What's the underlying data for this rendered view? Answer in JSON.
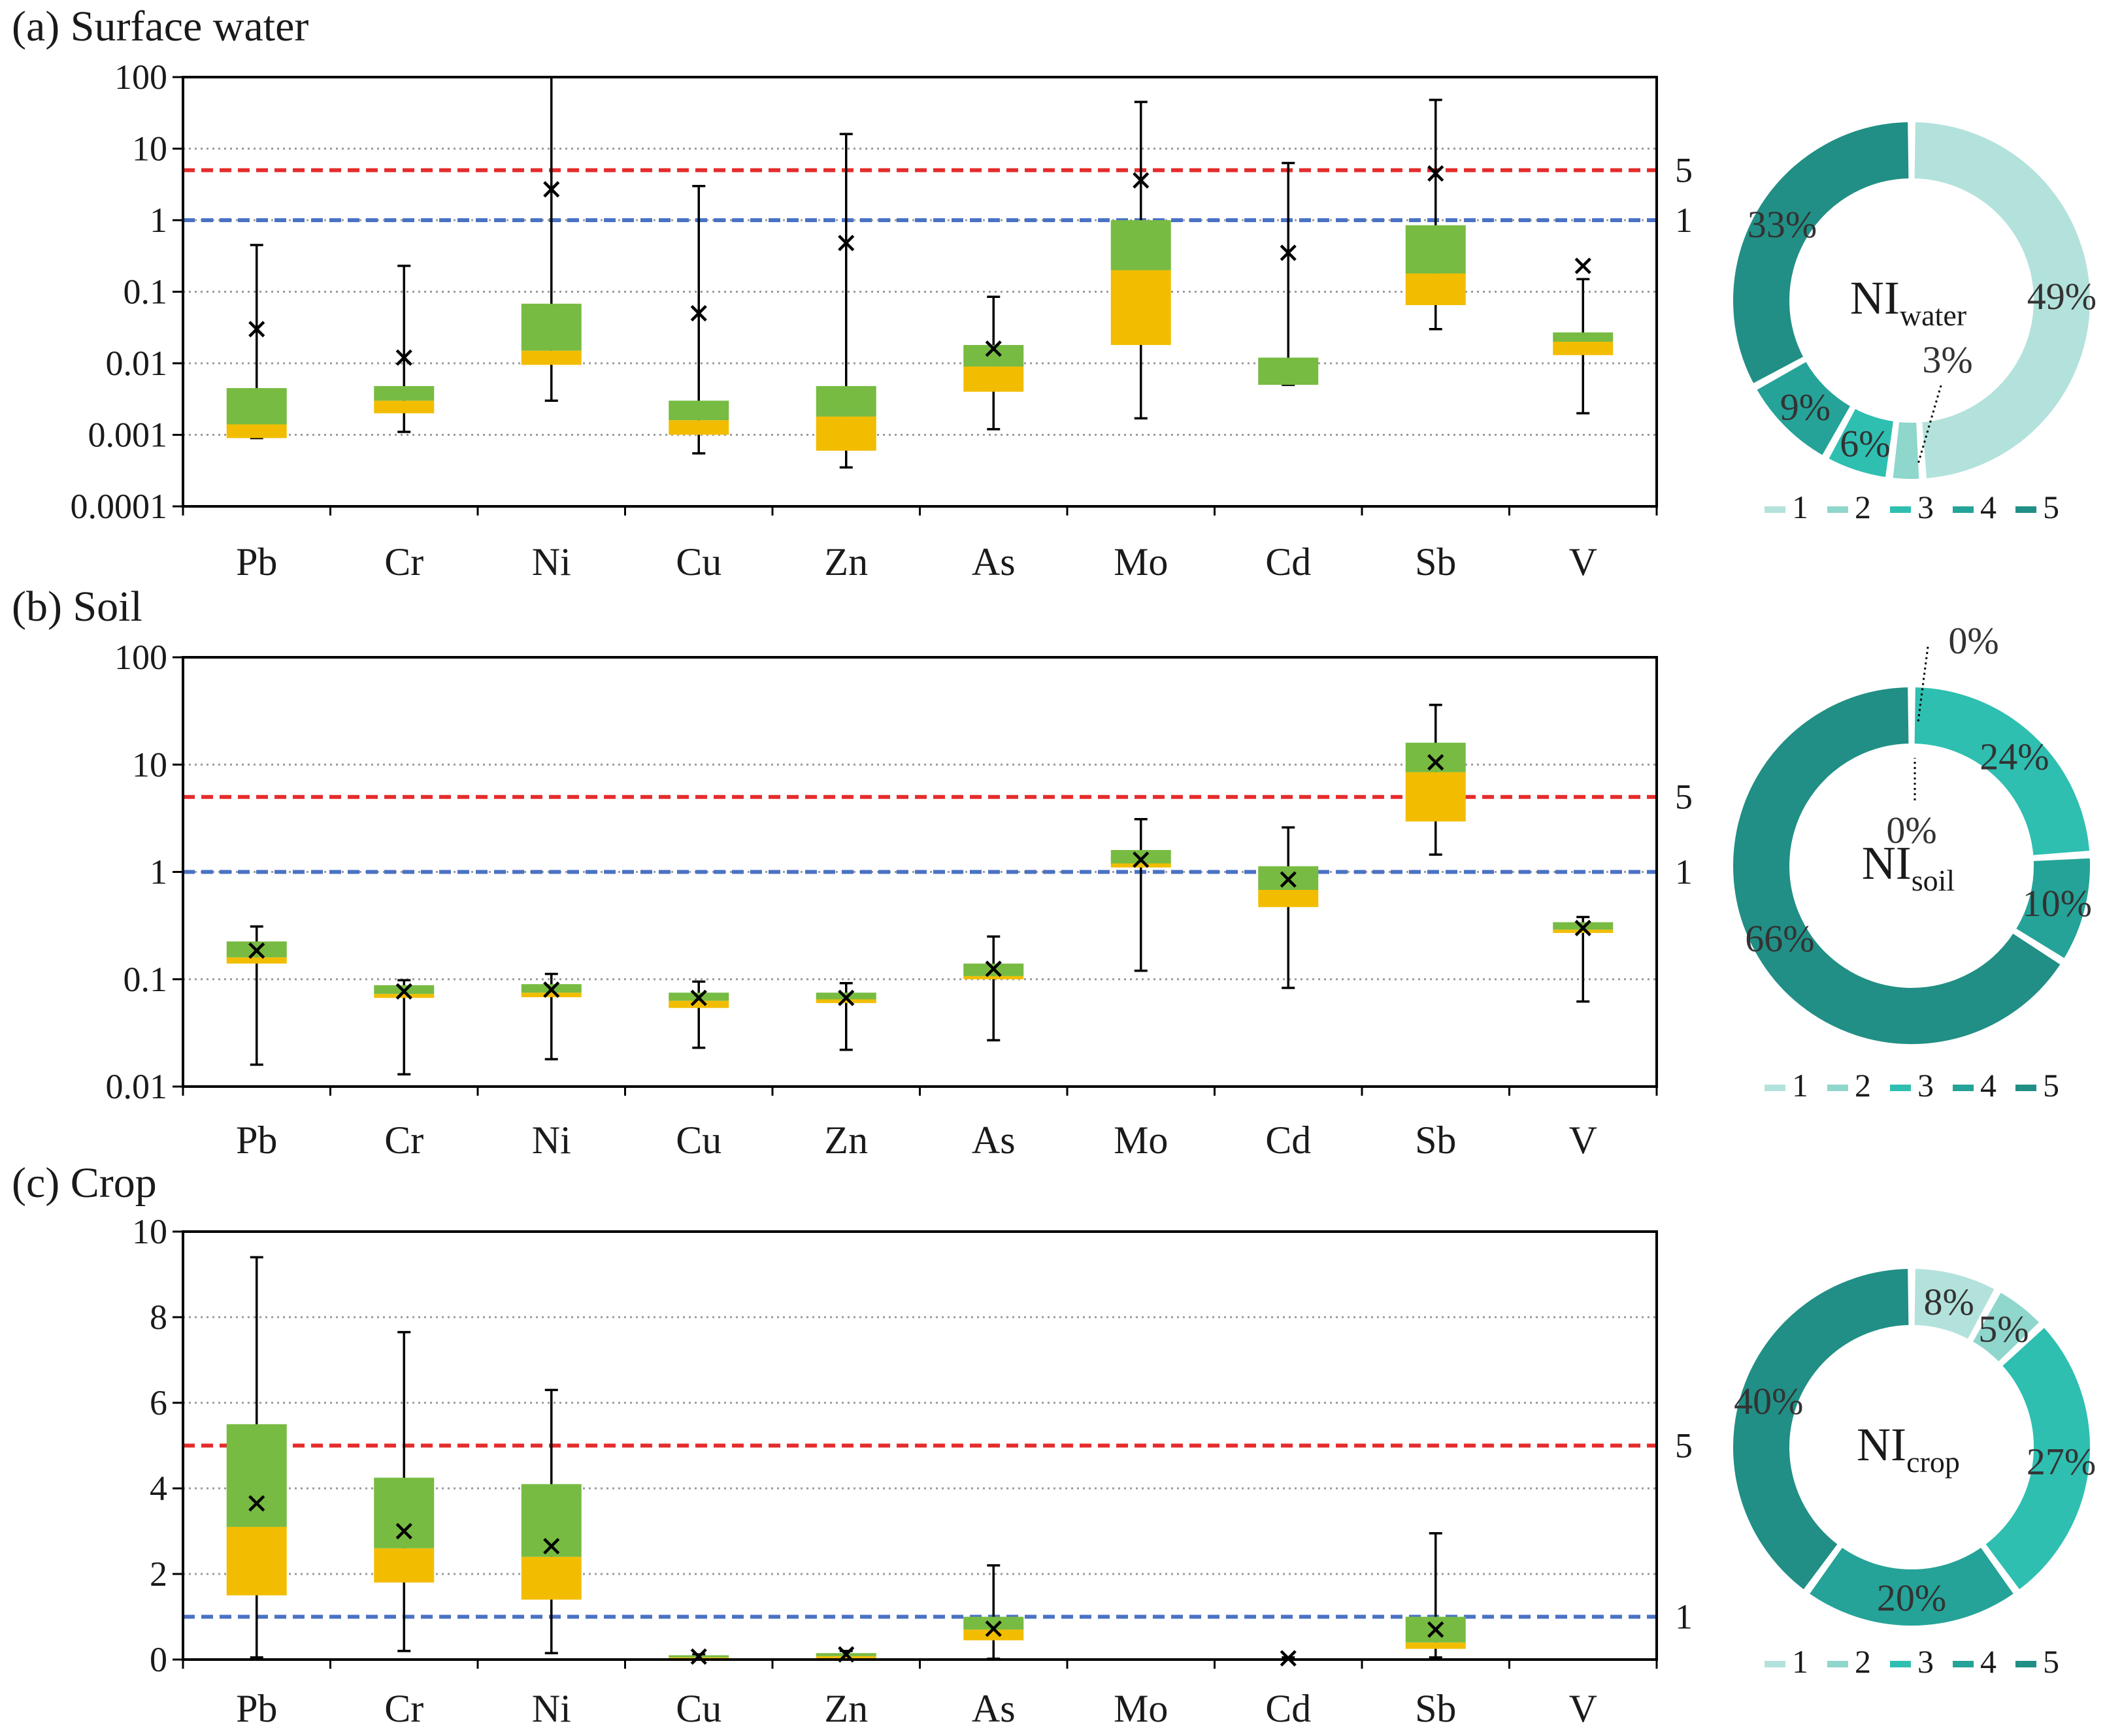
{
  "chart_data": [
    {
      "type": "boxplot",
      "title": "(a) Surface water",
      "yscale": "log",
      "ylim": [
        0.0001,
        100
      ],
      "yticks": [
        100,
        10,
        1,
        0.1,
        0.01,
        0.001,
        0.0001
      ],
      "ytick_labels": [
        "100",
        "10",
        "1",
        "0.1",
        "0.01",
        "0.001",
        "0.0001"
      ],
      "grid": "dotted",
      "categories": [
        "Pb",
        "Cr",
        "Ni",
        "Cu",
        "Zn",
        "As",
        "Mo",
        "Cd",
        "Sb",
        "V"
      ],
      "whisker_min": [
        0.0009,
        0.0011,
        0.003,
        0.00055,
        0.00035,
        0.0012,
        0.0017,
        0.005,
        0.03,
        0.002
      ],
      "q1": [
        0.0009,
        0.002,
        0.0095,
        0.001,
        0.0006,
        0.004,
        0.018,
        0.005,
        0.065,
        0.013
      ],
      "median": [
        0.0014,
        0.003,
        0.015,
        0.0016,
        0.0018,
        0.009,
        0.2,
        0.005,
        0.18,
        0.02
      ],
      "q3": [
        0.0045,
        0.0048,
        0.068,
        0.003,
        0.0048,
        0.018,
        1.0,
        0.012,
        0.85,
        0.027
      ],
      "whisker_max": [
        0.45,
        0.23,
        100,
        3,
        16,
        0.085,
        45,
        6.3,
        48,
        0.15
      ],
      "mean": [
        0.03,
        0.012,
        2.7,
        0.05,
        0.48,
        0.016,
        3.6,
        0.35,
        4.5,
        0.23
      ],
      "reference_lines": [
        {
          "value": 5,
          "label": "5",
          "color": "#e52b2b",
          "style": "dashed"
        },
        {
          "value": 1,
          "label": "1",
          "color": "#4a72c4",
          "style": "dashed"
        }
      ],
      "box_lower_color": "#f2bd00",
      "box_upper_color": "#77bb42",
      "donut": {
        "center_label": "NI",
        "center_sub": "water",
        "slices": [
          {
            "class": "1",
            "percent": 49,
            "label": "49%",
            "color": "#b3e2dc"
          },
          {
            "class": "2",
            "percent": 3,
            "label": "3%",
            "color": "#8fd6cc"
          },
          {
            "class": "3",
            "percent": 6,
            "label": "6%",
            "color": "#2ebfb1"
          },
          {
            "class": "4",
            "percent": 9,
            "label": "9%",
            "color": "#25a398"
          },
          {
            "class": "5",
            "percent": 33,
            "label": "33%",
            "color": "#218f85"
          }
        ]
      }
    },
    {
      "type": "boxplot",
      "title": "(b) Soil",
      "yscale": "log",
      "ylim": [
        0.01,
        100
      ],
      "yticks": [
        100,
        10,
        1,
        0.1,
        0.01
      ],
      "ytick_labels": [
        "100",
        "10",
        "1",
        "0.1",
        "0.01"
      ],
      "grid": "dotted",
      "categories": [
        "Pb",
        "Cr",
        "Ni",
        "Cu",
        "Zn",
        "As",
        "Mo",
        "Cd",
        "Sb",
        "V"
      ],
      "whisker_min": [
        0.016,
        0.013,
        0.018,
        0.023,
        0.022,
        0.027,
        0.12,
        0.083,
        1.45,
        0.062
      ],
      "q1": [
        0.14,
        0.067,
        0.068,
        0.054,
        0.06,
        0.1,
        1.1,
        0.47,
        2.95,
        0.27
      ],
      "median": [
        0.16,
        0.073,
        0.075,
        0.063,
        0.065,
        0.107,
        1.2,
        0.68,
        8.5,
        0.29
      ],
      "q3": [
        0.225,
        0.088,
        0.09,
        0.075,
        0.075,
        0.14,
        1.6,
        1.13,
        16,
        0.34
      ],
      "whisker_max": [
        0.31,
        0.098,
        0.112,
        0.095,
        0.092,
        0.25,
        3.1,
        2.6,
        36,
        0.38
      ],
      "mean": [
        0.185,
        0.077,
        0.08,
        0.067,
        0.067,
        0.125,
        1.3,
        0.85,
        10.5,
        0.3
      ],
      "reference_lines": [
        {
          "value": 5,
          "label": "5",
          "color": "#e52b2b",
          "style": "dashed"
        },
        {
          "value": 1,
          "label": "1",
          "color": "#4a72c4",
          "style": "dashed"
        }
      ],
      "box_lower_color": "#f2bd00",
      "box_upper_color": "#77bb42",
      "donut": {
        "center_label": "NI",
        "center_sub": "soil",
        "slices": [
          {
            "class": "1",
            "percent": 0,
            "label": "0%",
            "color": "#b3e2dc"
          },
          {
            "class": "2",
            "percent": 0,
            "label": "0%",
            "color": "#8fd6cc"
          },
          {
            "class": "3",
            "percent": 24,
            "label": "24%",
            "color": "#2ebfb1"
          },
          {
            "class": "4",
            "percent": 10,
            "label": "10%",
            "color": "#25a398"
          },
          {
            "class": "5",
            "percent": 66,
            "label": "66%",
            "color": "#218f85"
          }
        ]
      }
    },
    {
      "type": "boxplot",
      "title": "(c) Crop",
      "yscale": "linear",
      "ylim": [
        0,
        10
      ],
      "yticks": [
        10,
        8,
        6,
        4,
        2,
        0
      ],
      "ytick_labels": [
        "10",
        "8",
        "6",
        "4",
        "2",
        "0"
      ],
      "grid": "dotted",
      "categories": [
        "Pb",
        "Cr",
        "Ni",
        "Cu",
        "Zn",
        "As",
        "Mo",
        "Cd",
        "Sb",
        "V"
      ],
      "whisker_min": [
        0.05,
        0.2,
        0.15,
        0.0,
        0.0,
        0.02,
        null,
        0.0,
        0.05,
        null
      ],
      "q1": [
        1.5,
        1.8,
        1.4,
        0.0,
        0.02,
        0.45,
        null,
        null,
        0.25,
        null
      ],
      "median": [
        3.1,
        2.6,
        2.4,
        0.05,
        0.08,
        0.7,
        null,
        null,
        0.4,
        null
      ],
      "q3": [
        5.5,
        4.25,
        4.1,
        0.1,
        0.15,
        1.0,
        null,
        null,
        1.0,
        null
      ],
      "whisker_max": [
        9.4,
        7.65,
        6.3,
        0.12,
        0.2,
        2.2,
        null,
        0.05,
        2.95,
        null
      ],
      "mean": [
        3.65,
        3.0,
        2.65,
        0.07,
        0.12,
        0.72,
        null,
        0.03,
        0.7,
        null
      ],
      "reference_lines": [
        {
          "value": 5,
          "label": "5",
          "color": "#e52b2b",
          "style": "dashed"
        },
        {
          "value": 1,
          "label": "1",
          "color": "#4a72c4",
          "style": "dashed"
        }
      ],
      "box_lower_color": "#f2bd00",
      "box_upper_color": "#77bb42",
      "donut": {
        "center_label": "NI",
        "center_sub": "crop",
        "slices": [
          {
            "class": "1",
            "percent": 8,
            "label": "8%",
            "color": "#b3e2dc"
          },
          {
            "class": "2",
            "percent": 5,
            "label": "5%",
            "color": "#8fd6cc"
          },
          {
            "class": "3",
            "percent": 27,
            "label": "27%",
            "color": "#2ebfb1"
          },
          {
            "class": "4",
            "percent": 20,
            "label": "20%",
            "color": "#25a398"
          },
          {
            "class": "5",
            "percent": 40,
            "label": "40%",
            "color": "#218f85"
          }
        ]
      }
    }
  ],
  "legend": {
    "items": [
      {
        "label": "1",
        "color": "#b3e2dc"
      },
      {
        "label": "2",
        "color": "#8fd6cc"
      },
      {
        "label": "3",
        "color": "#2ebfb1"
      },
      {
        "label": "4",
        "color": "#25a398"
      },
      {
        "label": "5",
        "color": "#218f85"
      }
    ]
  }
}
